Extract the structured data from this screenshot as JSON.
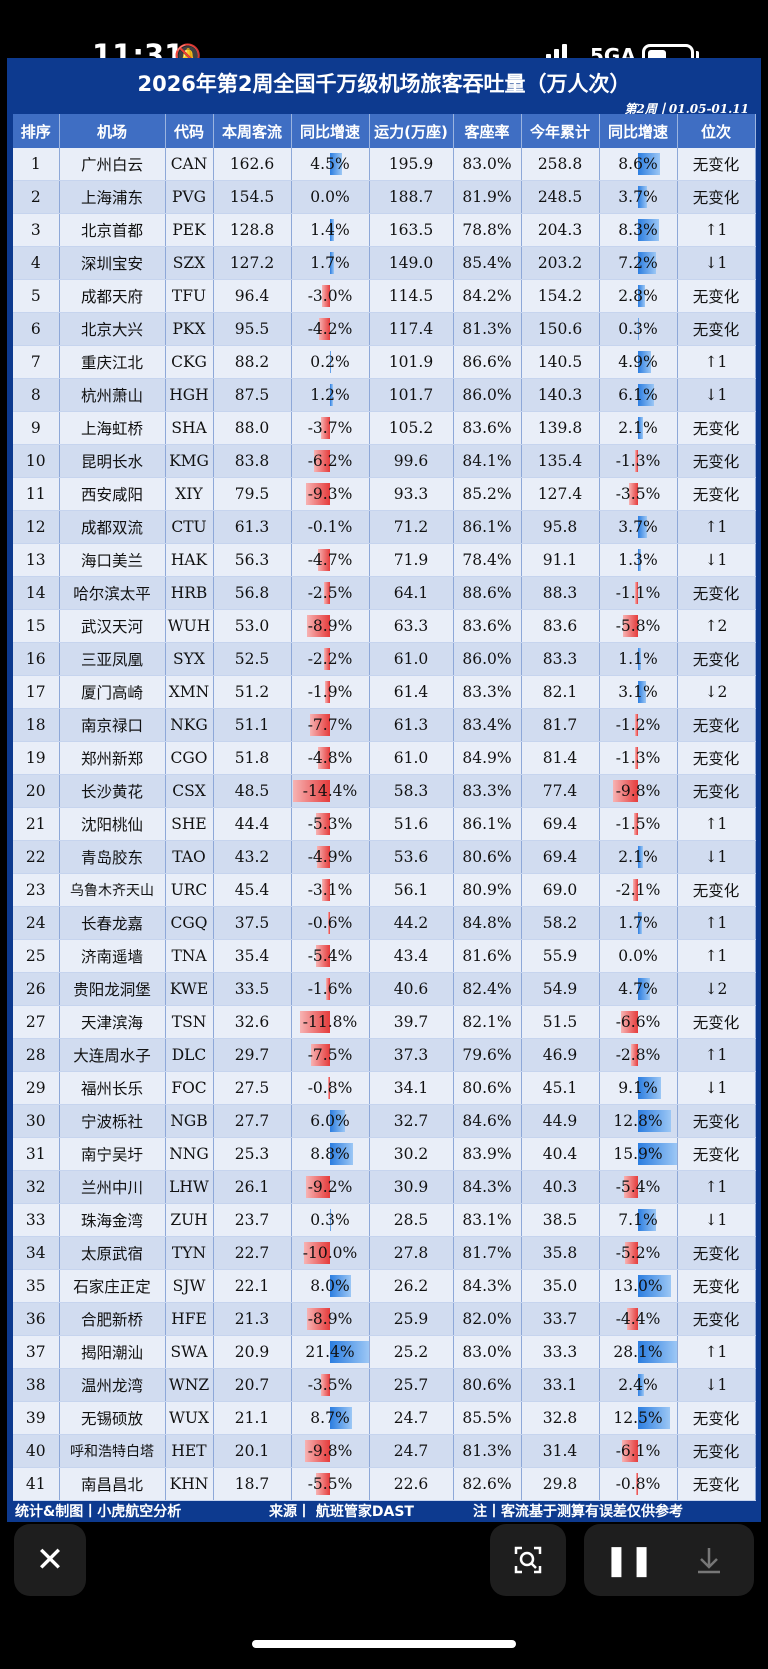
{
  "status_bar": {
    "time": "11:31",
    "network": "5GA"
  },
  "title": "2026年第2周全国千万级机场旅客吞吐量（万人次）",
  "week_label": "第2周丨01.05-01.11",
  "columns": [
    "排序",
    "机场",
    "代码",
    "本周客流",
    "同比增速",
    "运力(万座)",
    "客座率",
    "今年累计",
    "同比增速",
    "位次"
  ],
  "rows": [
    [
      "1",
      "广州白云",
      "CAN",
      "162.6",
      "4.5%",
      "195.9",
      "83.0%",
      "258.8",
      "8.6%",
      "无变化"
    ],
    [
      "2",
      "上海浦东",
      "PVG",
      "154.5",
      "0.0%",
      "188.7",
      "81.9%",
      "248.5",
      "3.7%",
      "无变化"
    ],
    [
      "3",
      "北京首都",
      "PEK",
      "128.8",
      "1.4%",
      "163.5",
      "78.8%",
      "204.3",
      "8.3%",
      "↑1"
    ],
    [
      "4",
      "深圳宝安",
      "SZX",
      "127.2",
      "1.7%",
      "149.0",
      "85.4%",
      "203.2",
      "7.2%",
      "↓1"
    ],
    [
      "5",
      "成都天府",
      "TFU",
      "96.4",
      "-3.0%",
      "114.5",
      "84.2%",
      "154.2",
      "2.8%",
      "无变化"
    ],
    [
      "6",
      "北京大兴",
      "PKX",
      "95.5",
      "-4.2%",
      "117.4",
      "81.3%",
      "150.6",
      "0.3%",
      "无变化"
    ],
    [
      "7",
      "重庆江北",
      "CKG",
      "88.2",
      "0.2%",
      "101.9",
      "86.6%",
      "140.5",
      "4.9%",
      "↑1"
    ],
    [
      "8",
      "杭州萧山",
      "HGH",
      "87.5",
      "1.2%",
      "101.7",
      "86.0%",
      "140.3",
      "6.1%",
      "↓1"
    ],
    [
      "9",
      "上海虹桥",
      "SHA",
      "88.0",
      "-3.7%",
      "105.2",
      "83.6%",
      "139.8",
      "2.1%",
      "无变化"
    ],
    [
      "10",
      "昆明长水",
      "KMG",
      "83.8",
      "-6.2%",
      "99.6",
      "84.1%",
      "135.4",
      "-1.3%",
      "无变化"
    ],
    [
      "11",
      "西安咸阳",
      "XIY",
      "79.5",
      "-9.3%",
      "93.3",
      "85.2%",
      "127.4",
      "-3.5%",
      "无变化"
    ],
    [
      "12",
      "成都双流",
      "CTU",
      "61.3",
      "-0.1%",
      "71.2",
      "86.1%",
      "95.8",
      "3.7%",
      "↑1"
    ],
    [
      "13",
      "海口美兰",
      "HAK",
      "56.3",
      "-4.7%",
      "71.9",
      "78.4%",
      "91.1",
      "1.3%",
      "↓1"
    ],
    [
      "14",
      "哈尔滨太平",
      "HRB",
      "56.8",
      "-2.5%",
      "64.1",
      "88.6%",
      "88.3",
      "-1.1%",
      "无变化"
    ],
    [
      "15",
      "武汉天河",
      "WUH",
      "53.0",
      "-8.9%",
      "63.3",
      "83.6%",
      "83.6",
      "-5.8%",
      "↑2"
    ],
    [
      "16",
      "三亚凤凰",
      "SYX",
      "52.5",
      "-2.2%",
      "61.0",
      "86.0%",
      "83.3",
      "1.1%",
      "无变化"
    ],
    [
      "17",
      "厦门高崎",
      "XMN",
      "51.2",
      "-1.9%",
      "61.4",
      "83.3%",
      "82.1",
      "3.1%",
      "↓2"
    ],
    [
      "18",
      "南京禄口",
      "NKG",
      "51.1",
      "-7.7%",
      "61.3",
      "83.4%",
      "81.7",
      "-1.2%",
      "无变化"
    ],
    [
      "19",
      "郑州新郑",
      "CGO",
      "51.8",
      "-4.8%",
      "61.0",
      "84.9%",
      "81.4",
      "-1.3%",
      "无变化"
    ],
    [
      "20",
      "长沙黄花",
      "CSX",
      "48.5",
      "-14.4%",
      "58.3",
      "83.3%",
      "77.4",
      "-9.8%",
      "无变化"
    ],
    [
      "21",
      "沈阳桃仙",
      "SHE",
      "44.4",
      "-5.3%",
      "51.6",
      "86.1%",
      "69.4",
      "-1.5%",
      "↑1"
    ],
    [
      "22",
      "青岛胶东",
      "TAO",
      "43.2",
      "-4.9%",
      "53.6",
      "80.6%",
      "69.4",
      "2.1%",
      "↓1"
    ],
    [
      "23",
      "乌鲁木齐天山",
      "URC",
      "45.4",
      "-3.1%",
      "56.1",
      "80.9%",
      "69.0",
      "-2.1%",
      "无变化"
    ],
    [
      "24",
      "长春龙嘉",
      "CGQ",
      "37.5",
      "-0.6%",
      "44.2",
      "84.8%",
      "58.2",
      "1.7%",
      "↑1"
    ],
    [
      "25",
      "济南遥墙",
      "TNA",
      "35.4",
      "-5.4%",
      "43.4",
      "81.6%",
      "55.9",
      "0.0%",
      "↑1"
    ],
    [
      "26",
      "贵阳龙洞堡",
      "KWE",
      "33.5",
      "-1.6%",
      "40.6",
      "82.4%",
      "54.9",
      "4.7%",
      "↓2"
    ],
    [
      "27",
      "天津滨海",
      "TSN",
      "32.6",
      "-11.8%",
      "39.7",
      "82.1%",
      "51.5",
      "-6.6%",
      "无变化"
    ],
    [
      "28",
      "大连周水子",
      "DLC",
      "29.7",
      "-7.5%",
      "37.3",
      "79.6%",
      "46.9",
      "-2.8%",
      "↑1"
    ],
    [
      "29",
      "福州长乐",
      "FOC",
      "27.5",
      "-0.8%",
      "34.1",
      "80.6%",
      "45.1",
      "9.1%",
      "↓1"
    ],
    [
      "30",
      "宁波栎社",
      "NGB",
      "27.7",
      "6.0%",
      "32.7",
      "84.6%",
      "44.9",
      "12.8%",
      "无变化"
    ],
    [
      "31",
      "南宁吴圩",
      "NNG",
      "25.3",
      "8.8%",
      "30.2",
      "83.9%",
      "40.4",
      "15.9%",
      "无变化"
    ],
    [
      "32",
      "兰州中川",
      "LHW",
      "26.1",
      "-9.2%",
      "30.9",
      "84.3%",
      "40.3",
      "-5.4%",
      "↑1"
    ],
    [
      "33",
      "珠海金湾",
      "ZUH",
      "23.7",
      "0.3%",
      "28.5",
      "83.1%",
      "38.5",
      "7.1%",
      "↓1"
    ],
    [
      "34",
      "太原武宿",
      "TYN",
      "22.7",
      "-10.0%",
      "27.8",
      "81.7%",
      "35.8",
      "-5.2%",
      "无变化"
    ],
    [
      "35",
      "石家庄正定",
      "SJW",
      "22.1",
      "8.0%",
      "26.2",
      "84.3%",
      "35.0",
      "13.0%",
      "无变化"
    ],
    [
      "36",
      "合肥新桥",
      "HFE",
      "21.3",
      "-8.9%",
      "25.9",
      "82.0%",
      "33.7",
      "-4.4%",
      "无变化"
    ],
    [
      "37",
      "揭阳潮汕",
      "SWA",
      "20.9",
      "21.4%",
      "25.2",
      "83.0%",
      "33.3",
      "28.1%",
      "↑1"
    ],
    [
      "38",
      "温州龙湾",
      "WNZ",
      "20.7",
      "-3.5%",
      "25.7",
      "80.6%",
      "33.1",
      "2.4%",
      "↓1"
    ],
    [
      "39",
      "无锡硕放",
      "WUX",
      "21.1",
      "8.7%",
      "24.7",
      "85.5%",
      "32.8",
      "12.5%",
      "无变化"
    ],
    [
      "40",
      "呼和浩特白塔",
      "HET",
      "20.1",
      "-9.8%",
      "24.7",
      "81.3%",
      "31.4",
      "-6.1%",
      "无变化"
    ],
    [
      "41",
      "南昌昌北",
      "KHN",
      "18.7",
      "-5.5%",
      "22.6",
      "82.6%",
      "29.8",
      "-0.8%",
      "无变化"
    ]
  ],
  "footer": {
    "left": "统计&制图丨小虎航空分析",
    "middle": "来源丨 航班管家DAST",
    "right": "注丨客流基于测算有误差仅供参考"
  },
  "controls": [
    "close-icon",
    "lens-icon",
    "pause-icon",
    "download-icon"
  ]
}
